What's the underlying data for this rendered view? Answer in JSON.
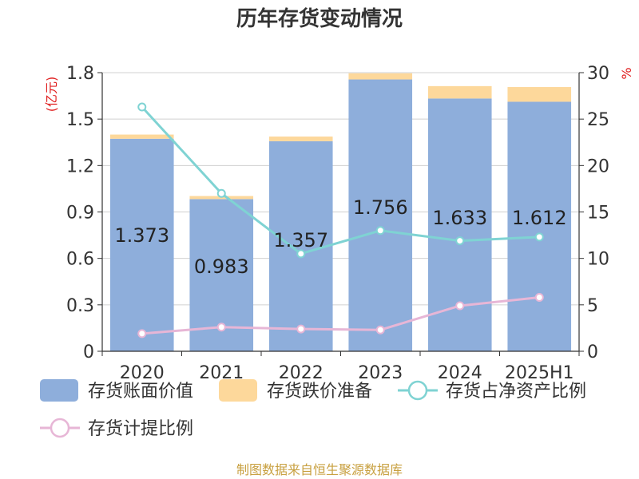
{
  "chart_data": {
    "type": "bar",
    "title": "历年存货变动情况",
    "categories": [
      "2020",
      "2021",
      "2022",
      "2023",
      "2024",
      "2025H1"
    ],
    "y_left": {
      "unit": "(亿元)",
      "ylim": [
        0,
        1.8
      ],
      "ticks": [
        "0",
        "0.3",
        "0.6",
        "0.9",
        "1.2",
        "1.5",
        "1.8"
      ]
    },
    "y_right": {
      "unit": "%",
      "ylim": [
        0,
        30
      ],
      "ticks": [
        "0",
        "5",
        "10",
        "15",
        "20",
        "25",
        "30"
      ]
    },
    "grid": true,
    "legend_position": "bottom-left",
    "series": [
      {
        "name": "存货账面价值",
        "kind": "bar",
        "axis": "left",
        "color": "#8eaedb",
        "values": [
          1.373,
          0.983,
          1.357,
          1.756,
          1.633,
          1.612
        ],
        "labels": [
          "1.373",
          "0.983",
          "1.357",
          "1.756",
          "1.633",
          "1.612"
        ]
      },
      {
        "name": "存货跌价准备",
        "kind": "bar-stack",
        "axis": "left",
        "color": "#fdd89b",
        "values": [
          0.027,
          0.02,
          0.03,
          0.04,
          0.08,
          0.095
        ]
      },
      {
        "name": "存货占净资产比例",
        "kind": "line",
        "axis": "right",
        "color": "#7fd3d3",
        "values": [
          26.3,
          17.0,
          10.5,
          13.0,
          11.9,
          12.3
        ]
      },
      {
        "name": "存货计提比例",
        "kind": "line",
        "axis": "right",
        "color": "#e7b6d6",
        "values": [
          1.9,
          2.6,
          2.4,
          2.3,
          4.9,
          5.8
        ]
      }
    ],
    "source": "制图数据来自恒生聚源数据库"
  }
}
